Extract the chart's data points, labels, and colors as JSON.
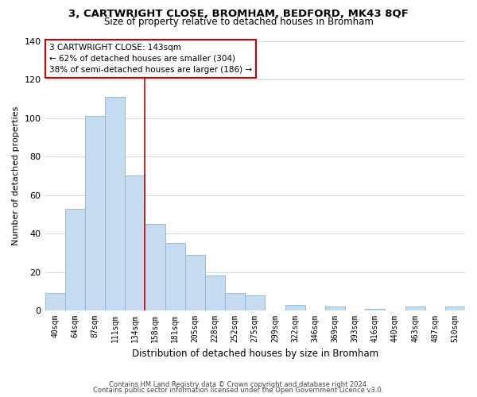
{
  "title": "3, CARTWRIGHT CLOSE, BROMHAM, BEDFORD, MK43 8QF",
  "subtitle": "Size of property relative to detached houses in Bromham",
  "xlabel": "Distribution of detached houses by size in Bromham",
  "ylabel": "Number of detached properties",
  "bar_color": "#c5dcf0",
  "bar_edge_color": "#8ab4d4",
  "vline_color": "#cc0000",
  "vline_x": 4.5,
  "categories": [
    "40sqm",
    "64sqm",
    "87sqm",
    "111sqm",
    "134sqm",
    "158sqm",
    "181sqm",
    "205sqm",
    "228sqm",
    "252sqm",
    "275sqm",
    "299sqm",
    "322sqm",
    "346sqm",
    "369sqm",
    "393sqm",
    "416sqm",
    "440sqm",
    "463sqm",
    "487sqm",
    "510sqm"
  ],
  "values": [
    9,
    53,
    101,
    111,
    70,
    45,
    35,
    29,
    18,
    9,
    8,
    0,
    3,
    0,
    2,
    0,
    1,
    0,
    2,
    0,
    2
  ],
  "ylim": [
    0,
    140
  ],
  "yticks": [
    0,
    20,
    40,
    60,
    80,
    100,
    120,
    140
  ],
  "annotation_title": "3 CARTWRIGHT CLOSE: 143sqm",
  "annotation_line1": "← 62% of detached houses are smaller (304)",
  "annotation_line2": "38% of semi-detached houses are larger (186) →",
  "footer_line1": "Contains HM Land Registry data © Crown copyright and database right 2024.",
  "footer_line2": "Contains public sector information licensed under the Open Government Licence v3.0.",
  "background_color": "#ffffff",
  "grid_color": "#c8dff0"
}
